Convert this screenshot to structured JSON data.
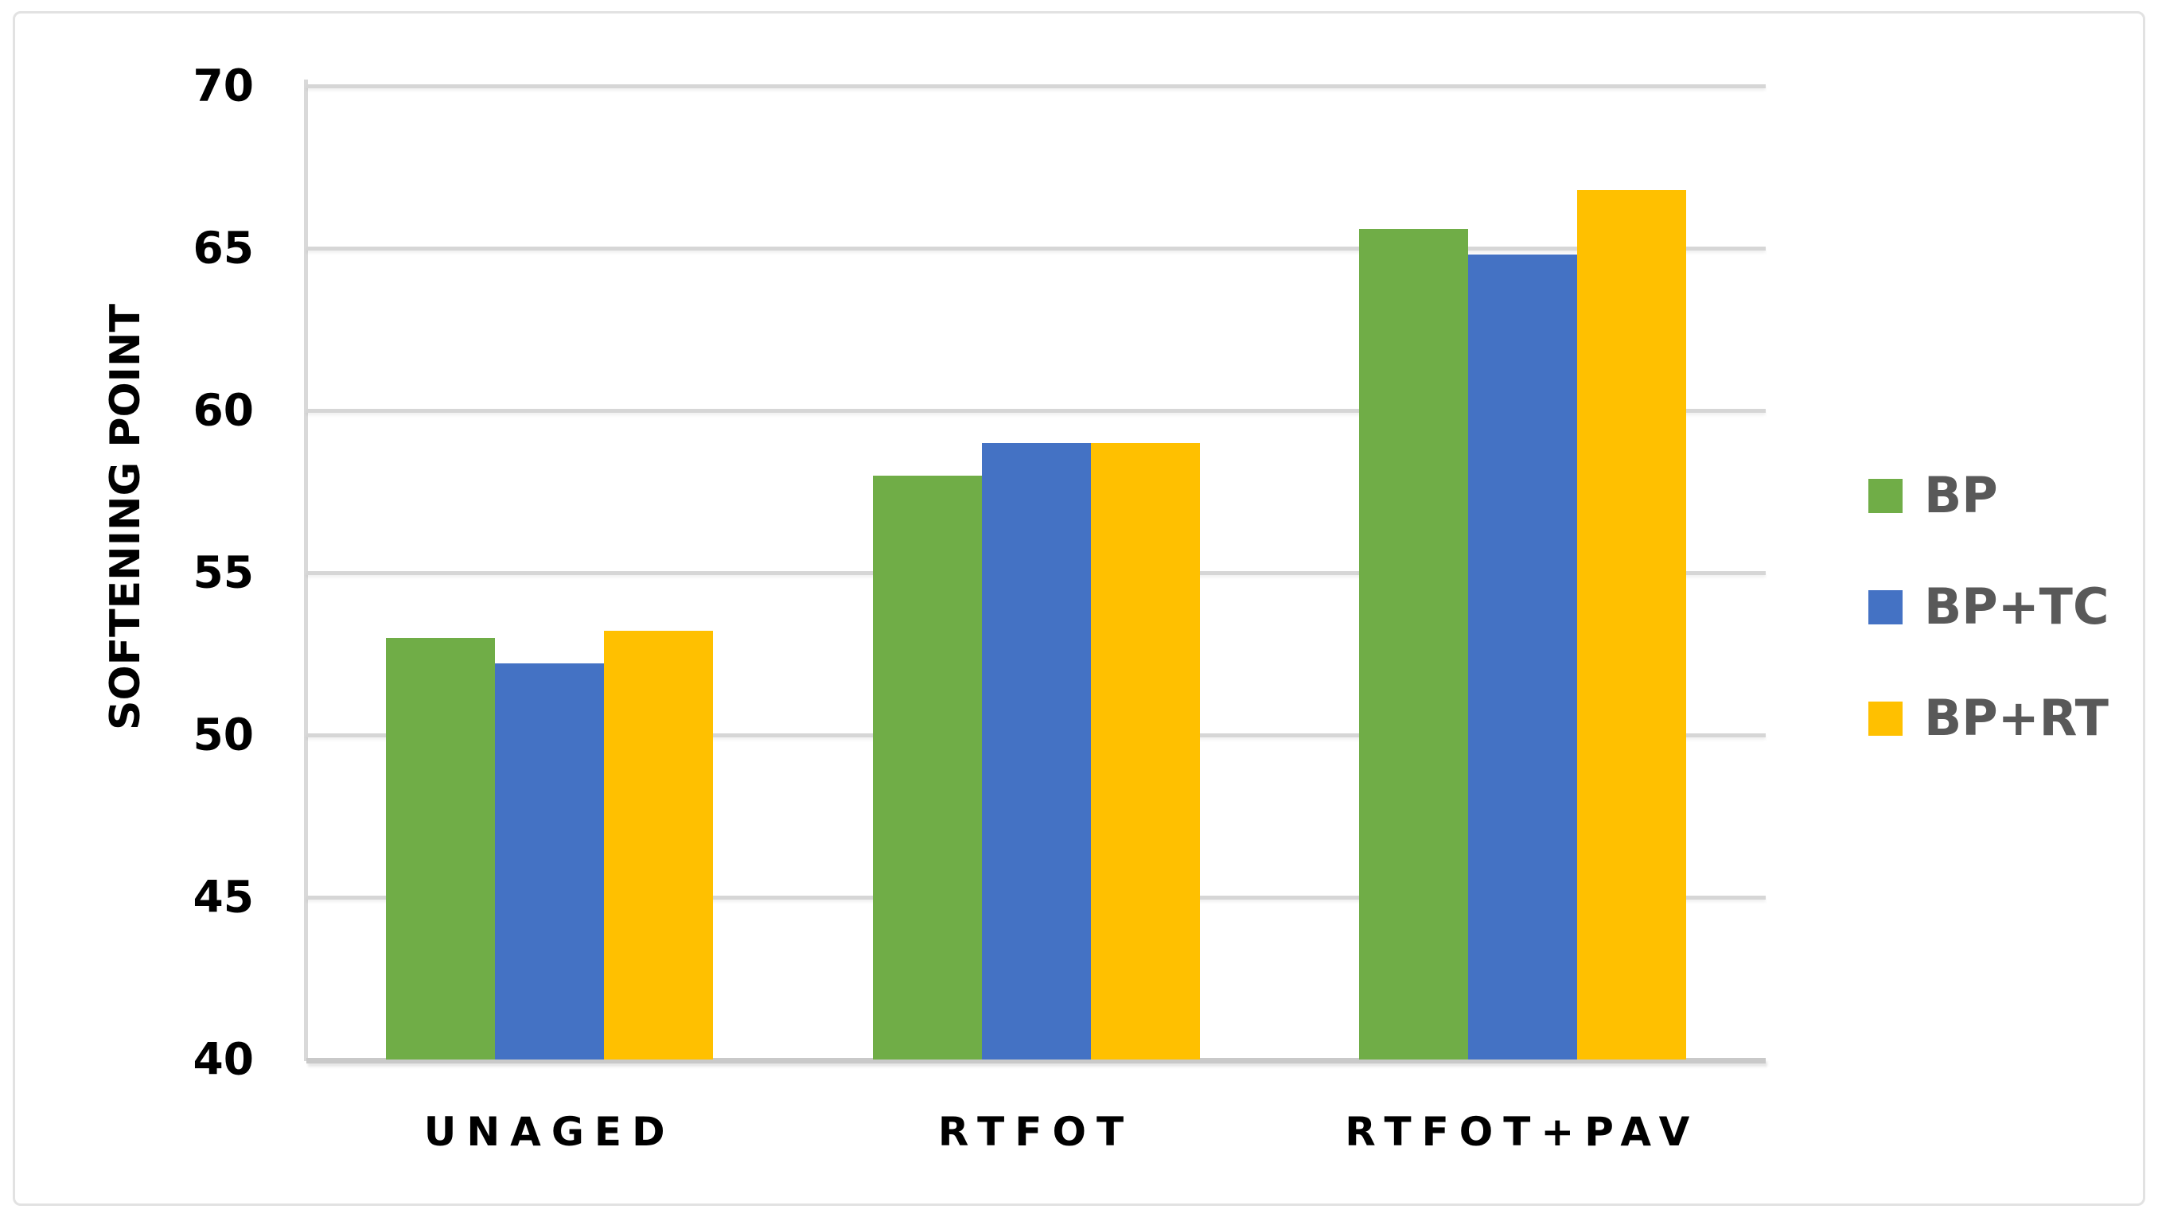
{
  "chart_data": {
    "type": "bar",
    "title": "",
    "categories": [
      "UNAGED",
      "RTFOT",
      "RTFOT+PAV"
    ],
    "series": [
      {
        "name": "BP",
        "color": "#70AD47",
        "values": [
          53.0,
          58.0,
          65.6
        ]
      },
      {
        "name": "BP+TC",
        "color": "#4472C4",
        "values": [
          52.2,
          59.0,
          64.8
        ]
      },
      {
        "name": "BP+RT",
        "color": "#FFC000",
        "values": [
          53.2,
          59.0,
          66.8
        ]
      }
    ],
    "xlabel": "",
    "ylabel": "SOFTENING POINT",
    "ylim": [
      40,
      70
    ],
    "yticks": [
      40,
      45,
      50,
      55,
      60,
      65,
      70
    ],
    "grid": true,
    "legend_position": "right"
  },
  "colors": {
    "background": "#ffffff",
    "frame_border": "#e2e2e2",
    "gridline": "#d6d6d6",
    "axis_line": "#c9c9c9",
    "tick_text": "#000000",
    "category_text": "#000000",
    "axis_title_text": "#000000",
    "legend_text": "#595959"
  }
}
